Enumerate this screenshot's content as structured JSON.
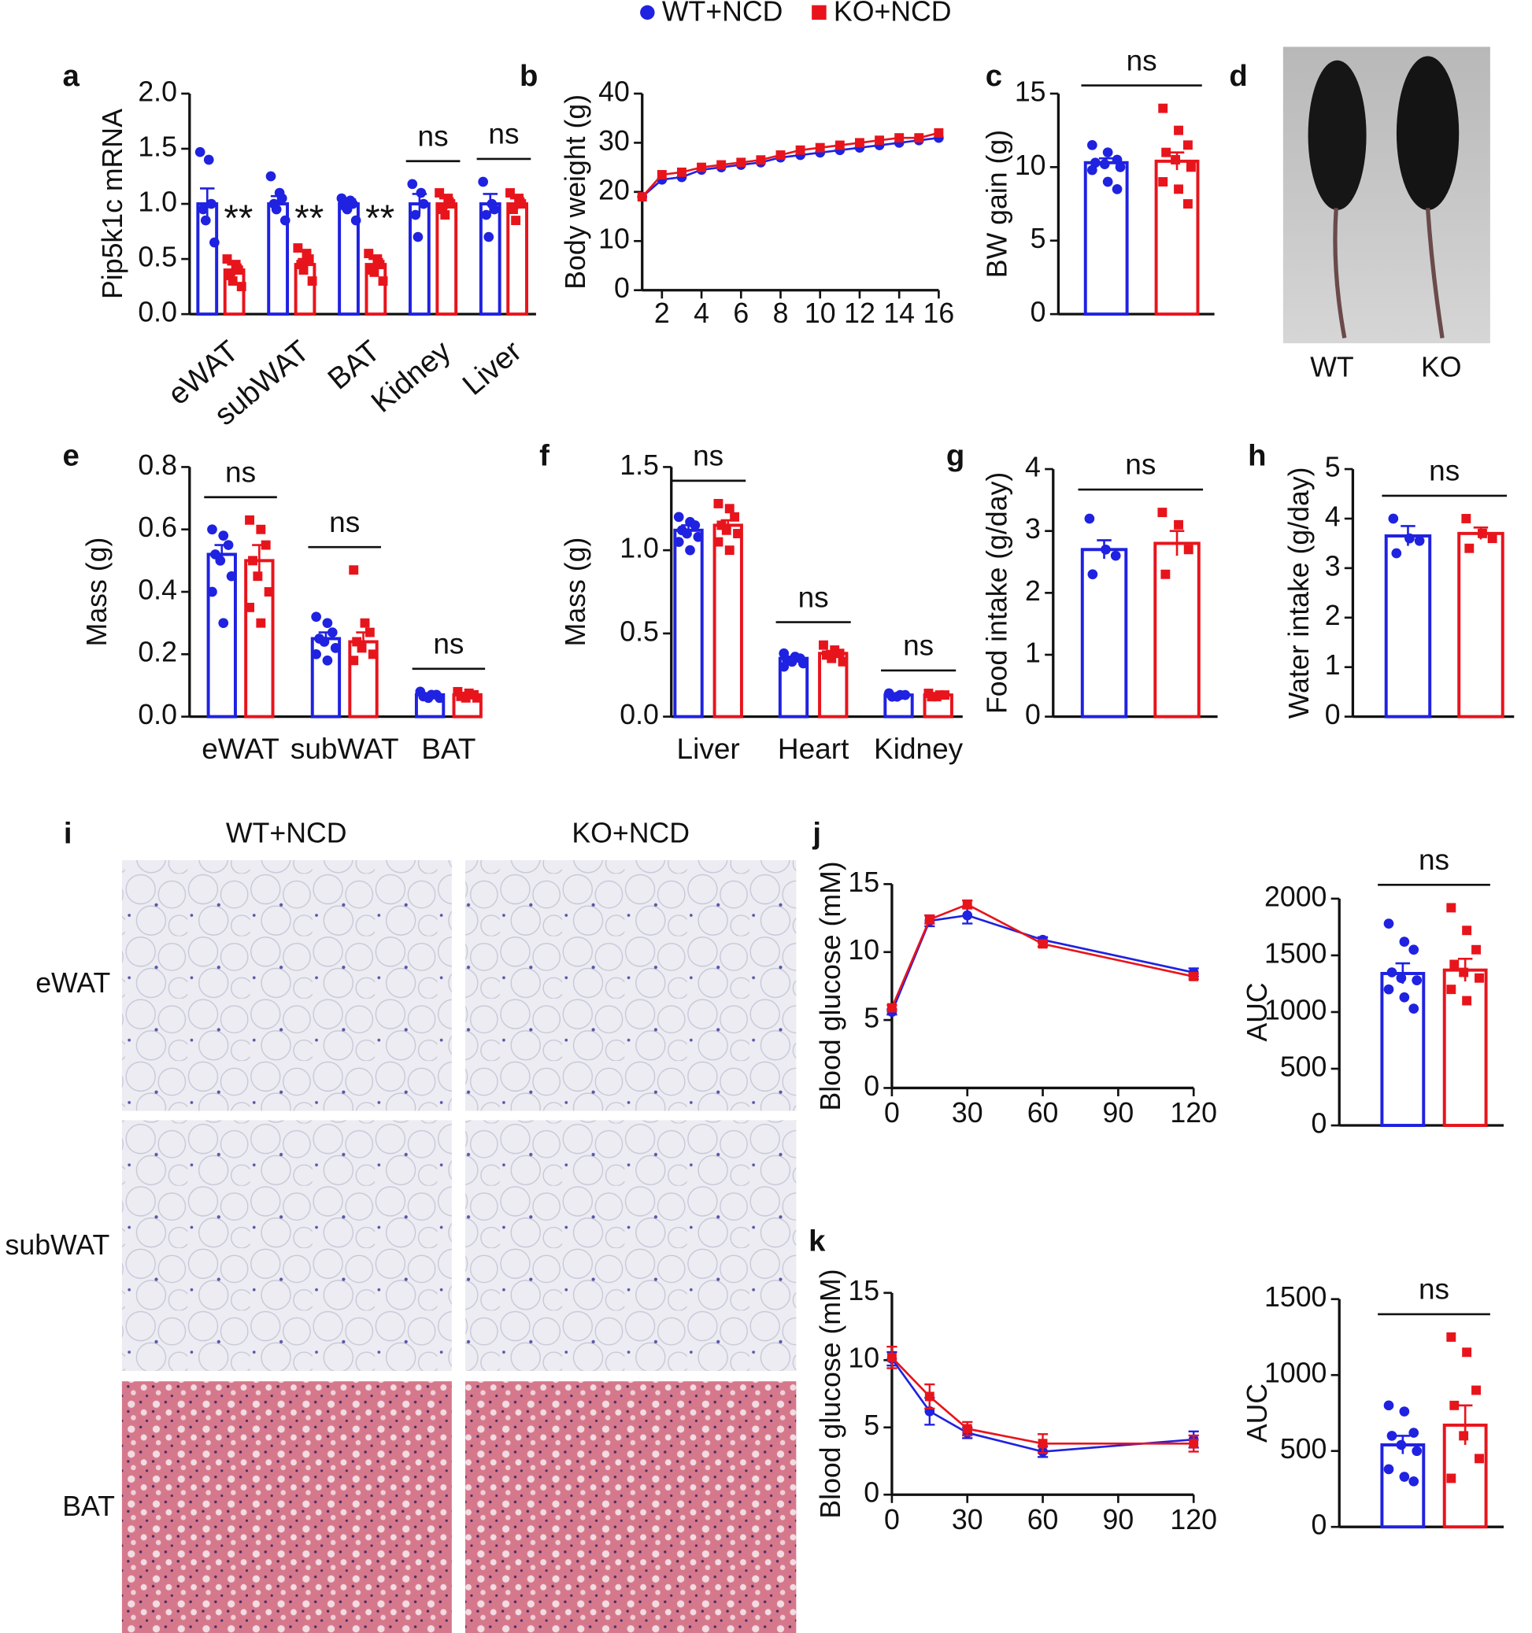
{
  "groups": [
    {
      "name": "WT+NCD",
      "color": "#1f22e0"
    },
    {
      "name": "KO+NCD",
      "color": "#e8141c"
    }
  ],
  "chart_data": [
    {
      "type": "bar",
      "panel": "a",
      "ylabel": "Pip5k1c mRNA",
      "categories": [
        "eWAT",
        "subWAT",
        "BAT",
        "Kidney",
        "Liver"
      ],
      "ylim": [
        0,
        2
      ],
      "yticks": [
        {
          "value": 0,
          "label": "0.0"
        },
        0.5,
        {
          "value": 1,
          "label": "1.0"
        },
        1.5,
        {
          "value": 2,
          "label": "2.0"
        }
      ],
      "annotations": [
        "**",
        "**",
        "**",
        "ns",
        "ns"
      ],
      "series": [
        {
          "values": [
            1.0,
            1.0,
            1.0,
            1.0,
            1.0
          ],
          "errors": [
            0.14,
            0.07,
            0.04,
            0.09,
            0.09
          ],
          "points": [
            [
              1.47,
              1.4,
              1.0,
              0.95,
              0.85,
              0.65
            ],
            [
              1.25,
              1.1,
              1.05,
              1.0,
              0.95,
              0.85
            ],
            [
              1.05,
              1.03,
              1.0,
              0.98,
              0.95,
              0.85
            ],
            [
              1.18,
              1.1,
              1.0,
              0.9,
              0.7
            ],
            [
              1.2,
              1.0,
              0.95,
              0.9,
              0.7
            ]
          ]
        },
        {
          "values": [
            0.4,
            0.45,
            0.45,
            1.0,
            1.0
          ],
          "errors": [
            0.05,
            0.05,
            0.05,
            0.05,
            0.05
          ],
          "points": [
            [
              0.5,
              0.45,
              0.4,
              0.35,
              0.3,
              0.25
            ],
            [
              0.6,
              0.55,
              0.5,
              0.45,
              0.4,
              0.3
            ],
            [
              0.55,
              0.5,
              0.45,
              0.4,
              0.38,
              0.3
            ],
            [
              1.1,
              1.05,
              1.0,
              0.95,
              0.9
            ],
            [
              1.1,
              1.05,
              1.0,
              0.95,
              0.85
            ]
          ]
        }
      ]
    },
    {
      "type": "line",
      "panel": "b",
      "ylabel": "Body weight (g)",
      "x": [
        1,
        2,
        3,
        4,
        5,
        6,
        7,
        8,
        9,
        10,
        11,
        12,
        13,
        14,
        15,
        16
      ],
      "xlim": [
        1,
        16
      ],
      "xticks": [
        2,
        4,
        6,
        8,
        10,
        12,
        14,
        16
      ],
      "ylim": [
        0,
        40
      ],
      "yticks": [
        0,
        10,
        20,
        30,
        40
      ],
      "series": [
        {
          "values": [
            19,
            22.5,
            23,
            24.5,
            25,
            25.5,
            26,
            27,
            27.5,
            28,
            28.5,
            29,
            29.5,
            30,
            30.5,
            31
          ]
        },
        {
          "values": [
            19,
            23.5,
            24,
            25,
            25.5,
            26,
            26.5,
            27.5,
            28.5,
            29,
            29.5,
            30,
            30.5,
            31,
            31,
            32
          ]
        }
      ]
    },
    {
      "type": "bar",
      "panel": "c",
      "ylabel": "BW gain (g)",
      "ylim": [
        0,
        15
      ],
      "yticks": [
        0,
        5,
        10,
        15
      ],
      "annotations": [
        "ns"
      ],
      "series": [
        {
          "values": [
            10.3
          ],
          "errors": [
            0.3
          ],
          "points": [
            [
              11.5,
              11,
              10.5,
              10.3,
              10.2,
              10,
              9.8,
              9,
              8.5
            ]
          ]
        },
        {
          "values": [
            10.4
          ],
          "errors": [
            0.6
          ],
          "points": [
            [
              14,
              12.5,
              11.5,
              11,
              10.5,
              10,
              9,
              8.5,
              7.5
            ]
          ]
        }
      ]
    },
    {
      "type": "bar",
      "panel": "e",
      "ylabel": "Mass (g)",
      "categories": [
        "eWAT",
        "subWAT",
        "BAT"
      ],
      "ylim": [
        0,
        0.8
      ],
      "yticks": [
        {
          "value": 0,
          "label": "0.0"
        },
        0.2,
        0.4,
        0.6,
        0.8
      ],
      "annotations": [
        "ns",
        "ns",
        "ns"
      ],
      "series": [
        {
          "values": [
            0.52,
            0.25,
            0.07
          ],
          "errors": [
            0.03,
            0.02,
            0.005
          ],
          "points": [
            [
              0.6,
              0.58,
              0.55,
              0.52,
              0.5,
              0.45,
              0.4,
              0.3
            ],
            [
              0.32,
              0.3,
              0.27,
              0.25,
              0.24,
              0.22,
              0.2,
              0.18
            ],
            [
              0.08,
              0.07,
              0.07,
              0.065,
              0.06,
              0.06
            ]
          ]
        },
        {
          "values": [
            0.5,
            0.24,
            0.07
          ],
          "errors": [
            0.05,
            0.03,
            0.005
          ],
          "points": [
            [
              0.63,
              0.6,
              0.55,
              0.5,
              0.45,
              0.4,
              0.35,
              0.3
            ],
            [
              0.47,
              0.3,
              0.27,
              0.24,
              0.22,
              0.2,
              0.18
            ],
            [
              0.08,
              0.075,
              0.07,
              0.065,
              0.06,
              0.06
            ]
          ]
        }
      ]
    },
    {
      "type": "bar",
      "panel": "f",
      "ylabel": "Mass (g)",
      "categories": [
        "Liver",
        "Heart",
        "Kidney"
      ],
      "ylim": [
        0,
        1.5
      ],
      "yticks": [
        {
          "value": 0,
          "label": "0.0"
        },
        0.5,
        {
          "value": 1,
          "label": "1.0"
        },
        1.5
      ],
      "annotations": [
        "ns",
        "ns",
        "ns"
      ],
      "series": [
        {
          "values": [
            1.12,
            0.35,
            0.13
          ],
          "errors": [
            0.03,
            0.01,
            0.005
          ],
          "points": [
            [
              1.2,
              1.17,
              1.15,
              1.12,
              1.1,
              1.08,
              1.05,
              1.0
            ],
            [
              0.38,
              0.36,
              0.35,
              0.34,
              0.33,
              0.32,
              0.3
            ],
            [
              0.14,
              0.13,
              0.13,
              0.12,
              0.12
            ]
          ]
        },
        {
          "values": [
            1.15,
            0.38,
            0.13
          ],
          "errors": [
            0.03,
            0.015,
            0.005
          ],
          "points": [
            [
              1.28,
              1.25,
              1.2,
              1.15,
              1.12,
              1.1,
              1.05,
              1.0
            ],
            [
              0.43,
              0.4,
              0.38,
              0.37,
              0.35,
              0.33
            ],
            [
              0.14,
              0.13,
              0.13,
              0.12,
              0.12
            ]
          ]
        }
      ]
    },
    {
      "type": "bar",
      "panel": "g",
      "ylabel": "Food intake (g/day)",
      "ylim": [
        0,
        4
      ],
      "yticks": [
        0,
        1,
        2,
        3,
        4
      ],
      "annotations": [
        "ns"
      ],
      "series": [
        {
          "values": [
            2.7
          ],
          "errors": [
            0.15
          ],
          "points": [
            [
              3.2,
              2.7,
              2.6,
              2.3
            ]
          ]
        },
        {
          "values": [
            2.8
          ],
          "errors": [
            0.2
          ],
          "points": [
            [
              3.3,
              3.1,
              2.7,
              2.3
            ]
          ]
        }
      ]
    },
    {
      "type": "bar",
      "panel": "h",
      "ylabel": "Water intake (g/day)",
      "ylim": [
        0,
        5
      ],
      "yticks": [
        0,
        1,
        2,
        3,
        4,
        5
      ],
      "annotations": [
        "ns"
      ],
      "series": [
        {
          "values": [
            3.65
          ],
          "errors": [
            0.2
          ],
          "points": [
            [
              4.0,
              3.6,
              3.55,
              3.3
            ]
          ]
        },
        {
          "values": [
            3.7
          ],
          "errors": [
            0.12
          ],
          "points": [
            [
              4.0,
              3.7,
              3.6,
              3.4
            ]
          ]
        }
      ]
    },
    {
      "type": "line",
      "panel": "j",
      "ylabel": "Blood glucose (mM)",
      "x": [
        0,
        15,
        30,
        60,
        120
      ],
      "xlim": [
        0,
        120
      ],
      "xticks": [
        0,
        30,
        60,
        90,
        120
      ],
      "ylim": [
        0,
        15
      ],
      "yticks": [
        0,
        5,
        10,
        15
      ],
      "series": [
        {
          "values": [
            5.6,
            12.3,
            12.7,
            10.9,
            8.5
          ],
          "errors": [
            0.2,
            0.4,
            0.6,
            0.2,
            0.3
          ]
        },
        {
          "values": [
            5.9,
            12.4,
            13.5,
            10.6,
            8.2
          ],
          "errors": [
            0.2,
            0.3,
            0.3,
            0.2,
            0.2
          ]
        }
      ]
    },
    {
      "type": "bar",
      "ylabel": "AUC",
      "ylim": [
        0,
        2000
      ],
      "yticks": [
        0,
        500,
        1000,
        1500,
        2000
      ],
      "annotations": [
        "ns"
      ],
      "series": [
        {
          "values": [
            1340
          ],
          "errors": [
            90
          ],
          "points": [
            [
              1780,
              1620,
              1550,
              1350,
              1300,
              1280,
              1200,
              1130,
              1030
            ]
          ]
        },
        {
          "values": [
            1370
          ],
          "errors": [
            100
          ],
          "points": [
            [
              1920,
              1720,
              1550,
              1420,
              1350,
              1300,
              1200,
              1100
            ]
          ]
        }
      ]
    },
    {
      "type": "line",
      "panel": "k",
      "ylabel": "Blood glucose (mM)",
      "x": [
        0,
        15,
        30,
        60,
        120
      ],
      "xlim": [
        0,
        120
      ],
      "xticks": [
        0,
        30,
        60,
        90,
        120
      ],
      "ylim": [
        0,
        15
      ],
      "yticks": [
        0,
        5,
        10,
        15
      ],
      "series": [
        {
          "values": [
            10.1,
            6.2,
            4.6,
            3.2,
            4.1
          ],
          "errors": [
            0.5,
            1.0,
            0.4,
            0.4,
            0.6
          ]
        },
        {
          "values": [
            10.2,
            7.3,
            4.9,
            3.8,
            3.8
          ],
          "errors": [
            0.8,
            0.9,
            0.5,
            0.7,
            0.6
          ]
        }
      ]
    },
    {
      "type": "bar",
      "ylabel": "AUC",
      "ylim": [
        0,
        1500
      ],
      "yticks": [
        0,
        500,
        1000,
        1500
      ],
      "annotations": [
        "ns"
      ],
      "series": [
        {
          "values": [
            540
          ],
          "errors": [
            60
          ],
          "points": [
            [
              800,
              760,
              620,
              600,
              540,
              500,
              380,
              330,
              300
            ]
          ]
        },
        {
          "values": [
            670
          ],
          "errors": [
            130
          ],
          "points": [
            [
              1250,
              1150,
              900,
              800,
              600,
              450,
              320
            ]
          ]
        }
      ]
    }
  ],
  "photo": {
    "panel": "d",
    "labels": [
      "WT",
      "KO"
    ]
  },
  "histology": {
    "panel": "i",
    "columns": [
      "WT+NCD",
      "KO+NCD"
    ],
    "rows": [
      "eWAT",
      "subWAT",
      "BAT"
    ]
  }
}
